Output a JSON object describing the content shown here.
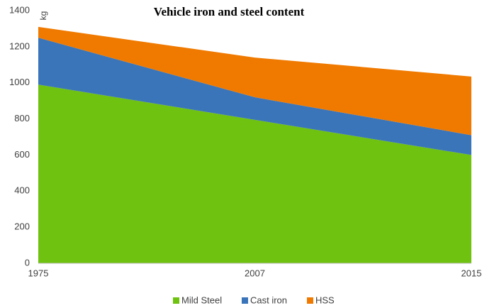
{
  "chart_data": {
    "type": "area",
    "stacked": true,
    "title": "Vehicle iron and steel content",
    "y_label": "kg",
    "categories": [
      "1975",
      "2007",
      "2015"
    ],
    "series": [
      {
        "name": "Mild Steel",
        "color": "#6fc20f",
        "values": [
          990,
          795,
          600
        ]
      },
      {
        "name": "Cast iron",
        "color": "#3a75ba",
        "values": [
          260,
          125,
          110
        ]
      },
      {
        "name": "HSS",
        "color": "#f07a00",
        "values": [
          60,
          220,
          325
        ]
      }
    ],
    "ylim": [
      0,
      1400
    ],
    "yticks": [
      0,
      200,
      400,
      600,
      800,
      1000,
      1200,
      1400
    ],
    "grid": false,
    "legend": "bottom"
  }
}
